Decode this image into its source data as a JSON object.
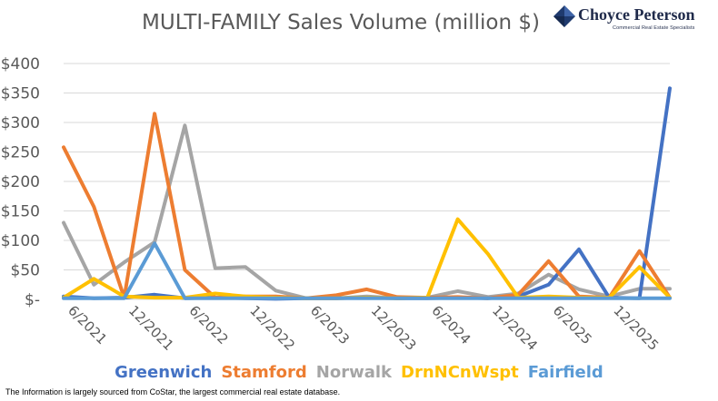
{
  "title": "MULTI-FAMILY Sales Volume (million $)",
  "logo": {
    "name": "Choyce Peterson",
    "tagline": "Commercial Real Estate Specialists"
  },
  "footnote": "The Information is largely sourced from CoStar, the largest commercial real estate database.",
  "chart_data": {
    "type": "line",
    "title": "MULTI-FAMILY Sales Volume (million $)",
    "xlabel": "",
    "ylabel": "",
    "ylim": [
      0,
      400
    ],
    "y_ticks": [
      0,
      50,
      100,
      150,
      200,
      250,
      300,
      350,
      400
    ],
    "y_tick_labels": [
      "$-",
      "$50",
      "$100",
      "$150",
      "$200",
      "$250",
      "$300",
      "$350",
      "$400"
    ],
    "x": [
      "6/2021",
      "9/2021",
      "12/2021",
      "3/2022",
      "6/2022",
      "9/2022",
      "12/2022",
      "3/2023",
      "6/2023",
      "9/2023",
      "12/2023",
      "3/2024",
      "6/2024",
      "9/2024",
      "12/2024",
      "3/2025",
      "6/2025",
      "9/2025",
      "12/2025",
      "3/2026",
      "6/2026"
    ],
    "x_tick_labels": [
      "6/2021",
      "12/2021",
      "6/2022",
      "12/2022",
      "6/2023",
      "12/2023",
      "6/2024",
      "12/2024",
      "6/2025",
      "12/2025"
    ],
    "grid": true,
    "legend": "bottom",
    "series": [
      {
        "name": "Greenwich",
        "color": "#4472C4",
        "values": [
          5,
          2,
          3,
          8,
          2,
          3,
          2,
          1,
          2,
          2,
          3,
          2,
          2,
          3,
          2,
          5,
          25,
          85,
          3,
          2,
          358
        ]
      },
      {
        "name": "Stamford",
        "color": "#ED7D31",
        "values": [
          258,
          157,
          3,
          315,
          50,
          3,
          5,
          5,
          2,
          7,
          17,
          4,
          3,
          4,
          2,
          8,
          65,
          5,
          3,
          82,
          3
        ]
      },
      {
        "name": "Norwalk",
        "color": "#A5A5A5",
        "values": [
          130,
          25,
          63,
          97,
          295,
          53,
          55,
          15,
          2,
          2,
          5,
          2,
          3,
          14,
          4,
          10,
          42,
          17,
          5,
          18,
          18
        ]
      },
      {
        "name": "DrnNCnWspt",
        "color": "#FFC000",
        "values": [
          3,
          35,
          5,
          3,
          3,
          10,
          5,
          3,
          2,
          2,
          3,
          2,
          3,
          136,
          77,
          3,
          5,
          3,
          3,
          55,
          3
        ]
      },
      {
        "name": "Fairfield",
        "color": "#5B9BD5",
        "values": [
          2,
          2,
          2,
          95,
          2,
          2,
          2,
          2,
          2,
          2,
          2,
          2,
          2,
          2,
          2,
          2,
          2,
          2,
          2,
          2,
          2
        ]
      }
    ]
  }
}
